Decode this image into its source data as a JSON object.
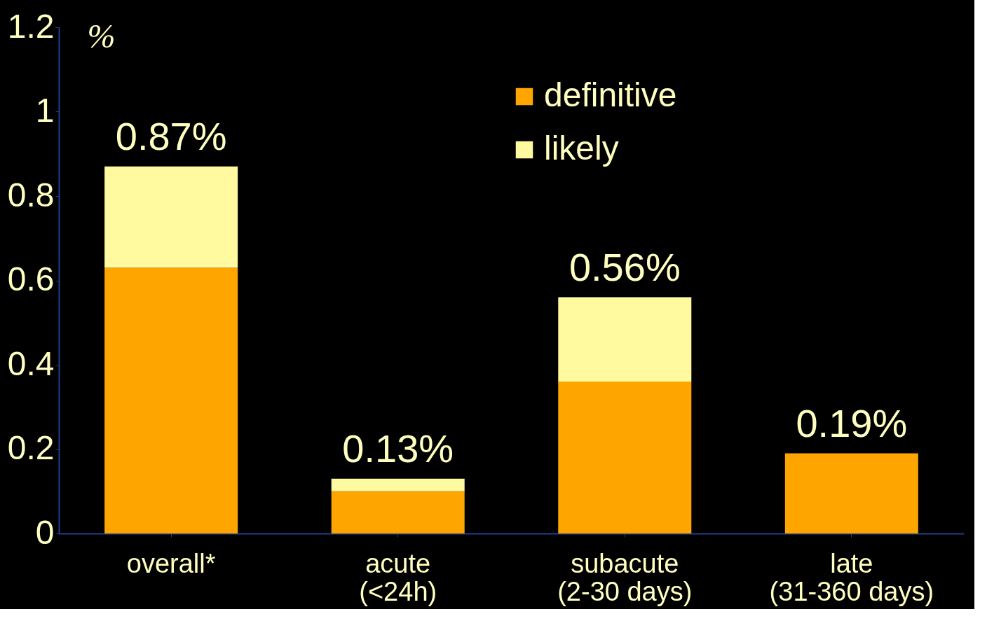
{
  "chart_data": {
    "type": "bar",
    "ylabel": "%",
    "categories": [
      "overall*",
      "acute (<24h)",
      "subacute (2-30 days)",
      "late (31-360 days)"
    ],
    "series": [
      {
        "name": "definitive",
        "color": "#ffa500",
        "values": [
          0.63,
          0.1,
          0.36,
          0.19
        ]
      },
      {
        "name": "likely",
        "color": "#fffaa0",
        "values": [
          0.24,
          0.03,
          0.2,
          0
        ]
      }
    ],
    "stacked": true,
    "totals": [
      "0.87%",
      "0.13%",
      "0.56%",
      "0.19%"
    ],
    "ylim": [
      0,
      1.2
    ],
    "yticks": [
      0,
      0.2,
      0.4,
      0.6,
      0.8,
      1,
      1.2
    ],
    "grid": false,
    "legend": "top right"
  }
}
